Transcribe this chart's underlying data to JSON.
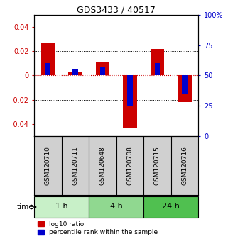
{
  "title": "GDS3433 / 40517",
  "samples": [
    "GSM120710",
    "GSM120711",
    "GSM120648",
    "GSM120708",
    "GSM120715",
    "GSM120716"
  ],
  "log10_ratio": [
    0.027,
    0.003,
    0.011,
    -0.044,
    0.022,
    -0.022
  ],
  "percentile_rank": [
    0.6,
    0.55,
    0.57,
    0.25,
    0.6,
    0.35
  ],
  "groups": [
    {
      "label": "1 h",
      "start": 0,
      "end": 2,
      "color": "#c8f0c8"
    },
    {
      "label": "4 h",
      "start": 2,
      "end": 4,
      "color": "#90d890"
    },
    {
      "label": "24 h",
      "start": 4,
      "end": 6,
      "color": "#50c050"
    }
  ],
  "ylim": [
    -0.05,
    0.05
  ],
  "yticks": [
    -0.04,
    -0.02,
    0.0,
    0.02,
    0.04
  ],
  "ytick_labels": [
    "-0.04",
    "-0.02",
    "0",
    "0.02",
    "0.04"
  ],
  "right_yticks_pct": [
    0,
    25,
    50,
    75,
    100
  ],
  "right_ytick_labels": [
    "0",
    "25",
    "50",
    "75",
    "100%"
  ],
  "bar_color_red": "#cc0000",
  "bar_color_blue": "#0000cc",
  "bar_width": 0.5,
  "blue_bar_width": 0.2,
  "time_label": "time",
  "legend_red": "log10 ratio",
  "legend_blue": "percentile rank within the sample",
  "background_color": "#ffffff",
  "plot_bg": "#ffffff",
  "grid_color": "#000000",
  "zero_line_color": "#cc0000",
  "sample_bg": "#d0d0d0"
}
